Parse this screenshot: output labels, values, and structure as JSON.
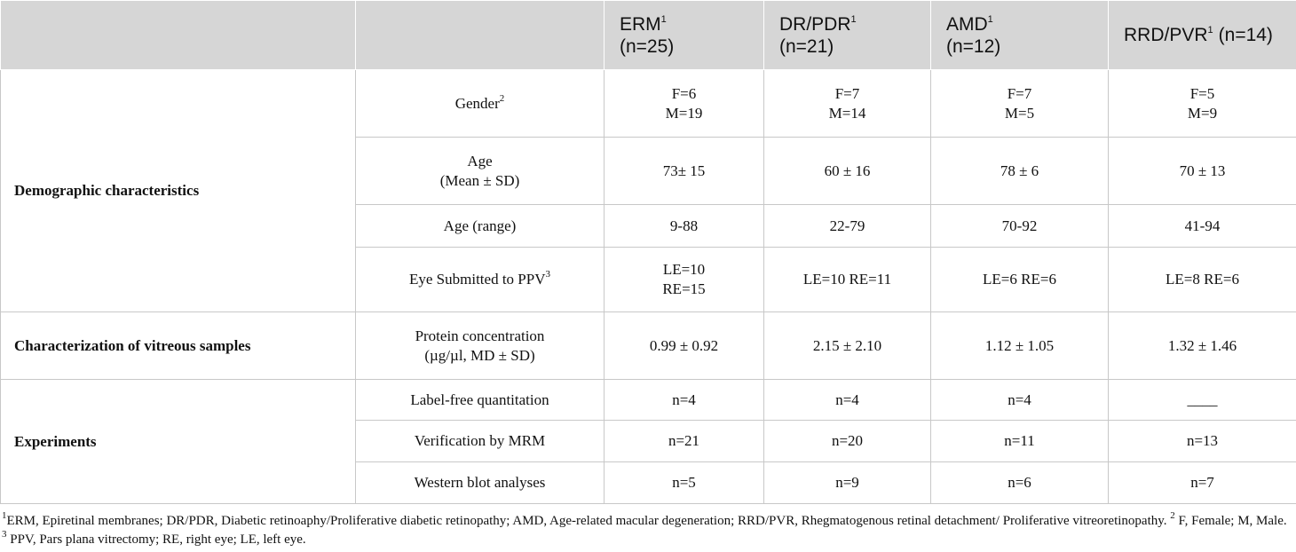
{
  "table": {
    "header": [
      [
        [
          {
            "text": "ERM",
            "sup": "1"
          }
        ],
        [
          {
            "text": "(n=25)"
          }
        ]
      ],
      [
        [
          {
            "text": "DR/PDR",
            "sup": "1"
          }
        ],
        [
          {
            "text": "(n=21)"
          }
        ]
      ],
      [
        [
          {
            "text": "AMD",
            "sup": "1"
          }
        ],
        [
          {
            "text": "(n=12)"
          }
        ]
      ],
      [
        [
          {
            "text": "RRD/PVR",
            "sup": "1"
          },
          {
            "text": "(n=14)"
          }
        ]
      ]
    ],
    "groups": [
      {
        "name": "Demographic characteristics",
        "rows": [
          {
            "label": [
              "Gender"
            ],
            "label_sup": "2",
            "cells": [
              [
                "F=6",
                "M=19"
              ],
              [
                "F=7",
                "M=14"
              ],
              [
                "F=7",
                "M=5"
              ],
              [
                "F=5",
                "M=9"
              ]
            ]
          },
          {
            "label": [
              "Age",
              "(Mean ± SD)"
            ],
            "cells": [
              [
                "73± 15"
              ],
              [
                "60 ± 16"
              ],
              [
                "78 ± 6"
              ],
              [
                "70 ± 13"
              ]
            ]
          },
          {
            "label": [
              "Age (range)"
            ],
            "cells": [
              [
                "9-88"
              ],
              [
                "22-79"
              ],
              [
                "70-92"
              ],
              [
                "41-94"
              ]
            ]
          },
          {
            "label": [
              "Eye Submitted to PPV"
            ],
            "label_sup": "3",
            "cells": [
              [
                "LE=10",
                "RE=15"
              ],
              [
                "LE=10 RE=11"
              ],
              [
                "LE=6 RE=6"
              ],
              [
                "LE=8 RE=6"
              ]
            ]
          }
        ]
      },
      {
        "name": "Characterization of vitreous samples",
        "rows": [
          {
            "label": [
              "Protein concentration",
              "(µg/µl, MD ± SD)"
            ],
            "cells": [
              [
                "0.99 ± 0.92"
              ],
              [
                "2.15 ± 2.10"
              ],
              [
                "1.12 ± 1.05"
              ],
              [
                "1.32 ± 1.46"
              ]
            ]
          }
        ]
      },
      {
        "name": "Experiments",
        "rows": [
          {
            "label": [
              "Label-free quantitation"
            ],
            "cells": [
              [
                "n=4"
              ],
              [
                "n=4"
              ],
              [
                "n=4"
              ],
              [
                "____"
              ]
            ]
          },
          {
            "label": [
              "Verification by MRM"
            ],
            "cells": [
              [
                "n=21"
              ],
              [
                "n=20"
              ],
              [
                "n=11"
              ],
              [
                "n=13"
              ]
            ]
          },
          {
            "label": [
              "Western blot analyses"
            ],
            "cells": [
              [
                "n=5"
              ],
              [
                "n=9"
              ],
              [
                "n=6"
              ],
              [
                "n=7"
              ]
            ]
          }
        ]
      }
    ]
  },
  "footnotes": [
    {
      "sup": "1",
      "text": "ERM, Epiretinal membranes; DR/PDR, Diabetic retinoaphy/Proliferative diabetic retinopathy; AMD, Age-related macular degeneration; RRD/PVR, Rhegmatogenous retinal detachment/ Proliferative vitreoretinopathy."
    },
    {
      "sup": "2",
      "text": "F, Female; M, Male."
    },
    {
      "sup": "3",
      "text": "PPV, Pars plana vitrectomy; RE, right eye; LE, left eye."
    }
  ]
}
